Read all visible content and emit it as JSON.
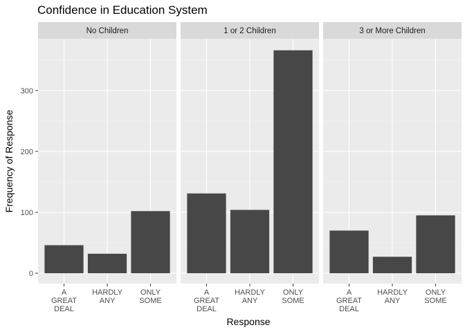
{
  "chart_data": {
    "type": "bar",
    "title": "Confidence in Education System",
    "xlabel": "Response",
    "ylabel": "Frequency of Response",
    "categories": [
      "A GREAT DEAL",
      "HARDLY ANY",
      "ONLY SOME"
    ],
    "category_lines": [
      [
        "A",
        "GREAT",
        "DEAL"
      ],
      [
        "HARDLY",
        "ANY"
      ],
      [
        "ONLY",
        "SOME"
      ]
    ],
    "facets": [
      {
        "name": "No Children",
        "values": [
          46,
          32,
          102
        ]
      },
      {
        "name": "1 or 2 Children",
        "values": [
          131,
          104,
          366
        ]
      },
      {
        "name": "3 or More Children",
        "values": [
          70,
          27,
          95
        ]
      }
    ],
    "yticks": [
      0,
      100,
      200,
      300
    ],
    "ylim": [
      -17,
      385
    ],
    "grid": true,
    "legend": "none"
  },
  "colors": {
    "bar": "#474747",
    "panel_bg": "#ebebeb",
    "strip_bg": "#d9d9d9",
    "grid_major": "#ffffff",
    "grid_minor": "#f4f4f4"
  }
}
